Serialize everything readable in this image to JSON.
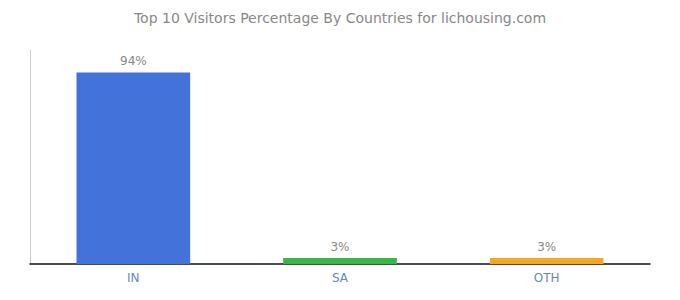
{
  "chart_data": {
    "type": "bar",
    "title": "Top 10 Visitors Percentage By Countries for lichousing.com",
    "categories": [
      "IN",
      "SA",
      "OTH"
    ],
    "values": [
      94,
      3,
      3
    ],
    "value_labels": [
      "94%",
      "3%",
      "3%"
    ],
    "data_labels": true,
    "colors": [
      "#4472db",
      "#3ab54a",
      "#f5a623"
    ],
    "ylim": [
      0,
      105
    ],
    "grid": false,
    "tick_labels": "x"
  }
}
